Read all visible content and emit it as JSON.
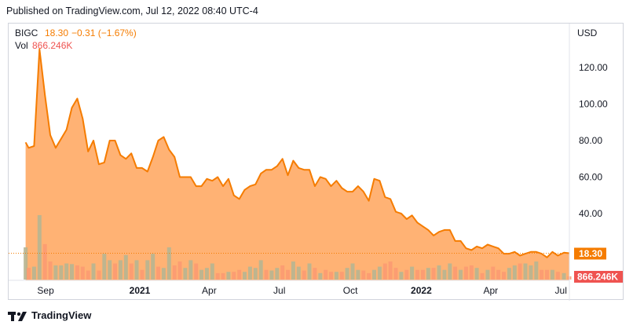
{
  "header": {
    "published": "Published on TradingView.com, Jul 12, 2022 08:40 UTC-4"
  },
  "legend": {
    "symbol": "BIGC",
    "price": "18.30",
    "change": "−0.31 (−1.67%)",
    "vol_label": "Vol",
    "vol_value": "866.246K"
  },
  "axis": {
    "currency": "USD"
  },
  "badges": {
    "price": "18.30",
    "volume": "866.246K"
  },
  "footer": {
    "brand": "TradingView"
  },
  "colors": {
    "line": "#f57c00",
    "area": "#ffa55c",
    "up_volume": "#b7b592",
    "down_volume": "#fc9a72",
    "badge_volume": "#ef5350"
  },
  "chart_data": {
    "type": "area",
    "title": "BIGC",
    "currency": "USD",
    "y_ticks": [
      40,
      60,
      80,
      100,
      120
    ],
    "ylim": [
      0,
      135
    ],
    "x_tick_labels": [
      "Sep",
      "2021",
      "Apr",
      "Jul",
      "Oct",
      "2022",
      "Apr",
      "Jul"
    ],
    "x_tick_dates": [
      "2020-09-01",
      "2021-01-01",
      "2021-04-01",
      "2021-07-01",
      "2021-10-01",
      "2022-01-01",
      "2022-04-01",
      "2022-07-01"
    ],
    "x_range": [
      "2020-07-15",
      "2022-07-12"
    ],
    "last_price": 18.3,
    "last_volume": "866.246K",
    "price_series": [
      [
        "2020-08-06",
        79
      ],
      [
        "2020-08-10",
        76
      ],
      [
        "2020-08-17",
        77
      ],
      [
        "2020-08-24",
        130
      ],
      [
        "2020-08-31",
        105
      ],
      [
        "2020-09-07",
        83
      ],
      [
        "2020-09-14",
        76
      ],
      [
        "2020-09-21",
        81
      ],
      [
        "2020-09-28",
        86
      ],
      [
        "2020-10-05",
        98
      ],
      [
        "2020-10-12",
        103
      ],
      [
        "2020-10-19",
        92
      ],
      [
        "2020-10-26",
        74
      ],
      [
        "2020-11-02",
        80
      ],
      [
        "2020-11-09",
        67
      ],
      [
        "2020-11-16",
        68
      ],
      [
        "2020-11-23",
        80
      ],
      [
        "2020-11-30",
        80
      ],
      [
        "2020-12-07",
        72
      ],
      [
        "2020-12-14",
        70
      ],
      [
        "2020-12-21",
        73
      ],
      [
        "2020-12-28",
        65
      ],
      [
        "2021-01-04",
        65
      ],
      [
        "2021-01-11",
        63
      ],
      [
        "2021-01-18",
        71
      ],
      [
        "2021-01-25",
        80
      ],
      [
        "2021-02-01",
        82
      ],
      [
        "2021-02-08",
        75
      ],
      [
        "2021-02-15",
        71
      ],
      [
        "2021-02-22",
        60
      ],
      [
        "2021-03-01",
        60
      ],
      [
        "2021-03-08",
        60
      ],
      [
        "2021-03-15",
        55
      ],
      [
        "2021-03-22",
        55
      ],
      [
        "2021-03-29",
        59
      ],
      [
        "2021-04-05",
        58
      ],
      [
        "2021-04-12",
        60
      ],
      [
        "2021-04-19",
        55
      ],
      [
        "2021-04-26",
        59
      ],
      [
        "2021-05-03",
        50
      ],
      [
        "2021-05-10",
        48
      ],
      [
        "2021-05-17",
        53
      ],
      [
        "2021-05-24",
        55
      ],
      [
        "2021-05-31",
        56
      ],
      [
        "2021-06-07",
        62
      ],
      [
        "2021-06-14",
        64
      ],
      [
        "2021-06-21",
        64
      ],
      [
        "2021-06-28",
        66
      ],
      [
        "2021-07-05",
        70
      ],
      [
        "2021-07-12",
        61
      ],
      [
        "2021-07-19",
        69
      ],
      [
        "2021-07-26",
        65
      ],
      [
        "2021-08-02",
        64
      ],
      [
        "2021-08-09",
        64
      ],
      [
        "2021-08-16",
        55
      ],
      [
        "2021-08-23",
        60
      ],
      [
        "2021-08-30",
        59
      ],
      [
        "2021-09-06",
        55
      ],
      [
        "2021-09-13",
        58
      ],
      [
        "2021-09-20",
        54
      ],
      [
        "2021-09-27",
        52
      ],
      [
        "2021-10-04",
        52
      ],
      [
        "2021-10-11",
        55
      ],
      [
        "2021-10-18",
        52
      ],
      [
        "2021-10-25",
        47
      ],
      [
        "2021-11-01",
        59
      ],
      [
        "2021-11-08",
        58
      ],
      [
        "2021-11-15",
        49
      ],
      [
        "2021-11-22",
        48
      ],
      [
        "2021-11-29",
        41
      ],
      [
        "2021-12-06",
        40
      ],
      [
        "2021-12-13",
        37
      ],
      [
        "2021-12-20",
        39
      ],
      [
        "2021-12-27",
        35
      ],
      [
        "2022-01-03",
        33
      ],
      [
        "2022-01-10",
        31
      ],
      [
        "2022-01-17",
        28
      ],
      [
        "2022-01-24",
        30
      ],
      [
        "2022-01-31",
        31
      ],
      [
        "2022-02-07",
        31
      ],
      [
        "2022-02-14",
        25
      ],
      [
        "2022-02-21",
        25
      ],
      [
        "2022-02-28",
        21
      ],
      [
        "2022-03-07",
        20
      ],
      [
        "2022-03-14",
        22
      ],
      [
        "2022-03-21",
        21
      ],
      [
        "2022-03-28",
        23
      ],
      [
        "2022-04-04",
        22
      ],
      [
        "2022-04-11",
        21
      ],
      [
        "2022-04-18",
        18
      ],
      [
        "2022-04-25",
        18
      ],
      [
        "2022-05-02",
        19
      ],
      [
        "2022-05-09",
        17
      ],
      [
        "2022-05-16",
        18
      ],
      [
        "2022-05-23",
        19
      ],
      [
        "2022-05-30",
        19
      ],
      [
        "2022-06-06",
        18
      ],
      [
        "2022-06-13",
        16
      ],
      [
        "2022-06-20",
        19
      ],
      [
        "2022-06-27",
        17
      ],
      [
        "2022-07-05",
        18.6
      ],
      [
        "2022-07-12",
        18.3
      ]
    ],
    "volume_series": [
      [
        "2020-08-06",
        0.5,
        "up"
      ],
      [
        "2020-08-10",
        0.18,
        "down"
      ],
      [
        "2020-08-17",
        0.2,
        "up"
      ],
      [
        "2020-08-24",
        1.0,
        "up"
      ],
      [
        "2020-08-31",
        0.55,
        "down"
      ],
      [
        "2020-09-07",
        0.28,
        "down"
      ],
      [
        "2020-09-14",
        0.22,
        "up"
      ],
      [
        "2020-09-21",
        0.22,
        "up"
      ],
      [
        "2020-09-28",
        0.25,
        "up"
      ],
      [
        "2020-10-05",
        0.24,
        "up"
      ],
      [
        "2020-10-12",
        0.22,
        "down"
      ],
      [
        "2020-10-19",
        0.2,
        "down"
      ],
      [
        "2020-10-26",
        0.14,
        "down"
      ],
      [
        "2020-11-02",
        0.25,
        "up"
      ],
      [
        "2020-11-09",
        0.14,
        "down"
      ],
      [
        "2020-11-16",
        0.4,
        "up"
      ],
      [
        "2020-11-23",
        0.3,
        "up"
      ],
      [
        "2020-11-30",
        0.25,
        "down"
      ],
      [
        "2020-12-07",
        0.3,
        "up"
      ],
      [
        "2020-12-14",
        0.38,
        "up"
      ],
      [
        "2020-12-21",
        0.25,
        "down"
      ],
      [
        "2020-12-28",
        0.3,
        "up"
      ],
      [
        "2021-01-04",
        0.15,
        "down"
      ],
      [
        "2021-01-11",
        0.3,
        "up"
      ],
      [
        "2021-01-18",
        0.4,
        "up"
      ],
      [
        "2021-01-25",
        0.2,
        "down"
      ],
      [
        "2021-02-01",
        0.18,
        "up"
      ],
      [
        "2021-02-08",
        0.5,
        "up"
      ],
      [
        "2021-02-15",
        0.22,
        "down"
      ],
      [
        "2021-02-22",
        0.28,
        "down"
      ],
      [
        "2021-03-01",
        0.18,
        "up"
      ],
      [
        "2021-03-08",
        0.3,
        "up"
      ],
      [
        "2021-03-15",
        0.25,
        "down"
      ],
      [
        "2021-03-22",
        0.15,
        "up"
      ],
      [
        "2021-03-29",
        0.18,
        "up"
      ],
      [
        "2021-04-05",
        0.25,
        "up"
      ],
      [
        "2021-04-12",
        0.1,
        "down"
      ],
      [
        "2021-04-19",
        0.1,
        "down"
      ],
      [
        "2021-04-26",
        0.12,
        "up"
      ],
      [
        "2021-05-03",
        0.12,
        "down"
      ],
      [
        "2021-05-10",
        0.15,
        "down"
      ],
      [
        "2021-05-17",
        0.12,
        "up"
      ],
      [
        "2021-05-24",
        0.2,
        "up"
      ],
      [
        "2021-05-31",
        0.18,
        "up"
      ],
      [
        "2021-06-07",
        0.3,
        "up"
      ],
      [
        "2021-06-14",
        0.15,
        "down"
      ],
      [
        "2021-06-21",
        0.14,
        "up"
      ],
      [
        "2021-06-28",
        0.18,
        "up"
      ],
      [
        "2021-07-05",
        0.22,
        "down"
      ],
      [
        "2021-07-12",
        0.15,
        "down"
      ],
      [
        "2021-07-19",
        0.28,
        "up"
      ],
      [
        "2021-07-26",
        0.2,
        "up"
      ],
      [
        "2021-08-02",
        0.14,
        "down"
      ],
      [
        "2021-08-09",
        0.25,
        "up"
      ],
      [
        "2021-08-16",
        0.18,
        "down"
      ],
      [
        "2021-08-23",
        0.1,
        "up"
      ],
      [
        "2021-08-30",
        0.15,
        "down"
      ],
      [
        "2021-09-06",
        0.12,
        "down"
      ],
      [
        "2021-09-13",
        0.12,
        "up"
      ],
      [
        "2021-09-20",
        0.12,
        "down"
      ],
      [
        "2021-09-27",
        0.18,
        "up"
      ],
      [
        "2021-10-04",
        0.25,
        "up"
      ],
      [
        "2021-10-11",
        0.15,
        "up"
      ],
      [
        "2021-10-18",
        0.14,
        "down"
      ],
      [
        "2021-10-25",
        0.1,
        "down"
      ],
      [
        "2021-11-01",
        0.15,
        "up"
      ],
      [
        "2021-11-08",
        0.2,
        "up"
      ],
      [
        "2021-11-15",
        0.25,
        "down"
      ],
      [
        "2021-11-22",
        0.28,
        "down"
      ],
      [
        "2021-11-29",
        0.18,
        "down"
      ],
      [
        "2021-12-06",
        0.12,
        "up"
      ],
      [
        "2021-12-13",
        0.15,
        "down"
      ],
      [
        "2021-12-20",
        0.2,
        "up"
      ],
      [
        "2021-12-27",
        0.15,
        "down"
      ],
      [
        "2022-01-03",
        0.15,
        "down"
      ],
      [
        "2022-01-10",
        0.18,
        "up"
      ],
      [
        "2022-01-17",
        0.18,
        "down"
      ],
      [
        "2022-01-24",
        0.22,
        "up"
      ],
      [
        "2022-01-31",
        0.15,
        "up"
      ],
      [
        "2022-02-07",
        0.25,
        "up"
      ],
      [
        "2022-02-14",
        0.2,
        "down"
      ],
      [
        "2022-02-21",
        0.15,
        "up"
      ],
      [
        "2022-02-28",
        0.2,
        "down"
      ],
      [
        "2022-03-07",
        0.22,
        "down"
      ],
      [
        "2022-03-14",
        0.18,
        "up"
      ],
      [
        "2022-03-21",
        0.1,
        "down"
      ],
      [
        "2022-03-28",
        0.15,
        "up"
      ],
      [
        "2022-04-04",
        0.2,
        "down"
      ],
      [
        "2022-04-11",
        0.15,
        "down"
      ],
      [
        "2022-04-18",
        0.12,
        "down"
      ],
      [
        "2022-04-25",
        0.18,
        "up"
      ],
      [
        "2022-05-02",
        0.22,
        "up"
      ],
      [
        "2022-05-09",
        0.25,
        "down"
      ],
      [
        "2022-05-16",
        0.25,
        "up"
      ],
      [
        "2022-05-23",
        0.22,
        "up"
      ],
      [
        "2022-05-30",
        0.28,
        "up"
      ],
      [
        "2022-06-06",
        0.15,
        "down"
      ],
      [
        "2022-06-13",
        0.15,
        "down"
      ],
      [
        "2022-06-20",
        0.15,
        "up"
      ],
      [
        "2022-06-27",
        0.12,
        "down"
      ],
      [
        "2022-07-05",
        0.1,
        "up"
      ],
      [
        "2022-07-12",
        0.05,
        "down"
      ]
    ]
  }
}
